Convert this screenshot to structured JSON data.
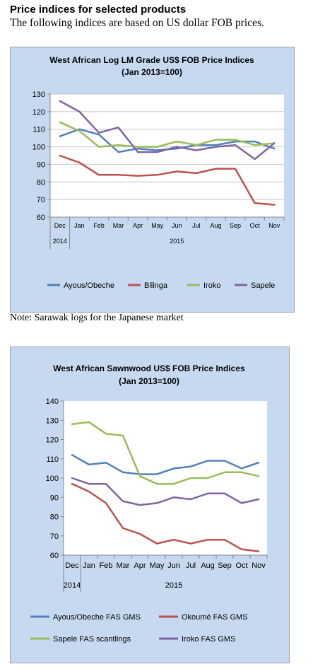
{
  "header": {
    "title": "Price indices for selected products",
    "subtitle": "The following indices are based on US dollar FOB prices."
  },
  "note": "Note: Sarawak logs for the Japanese market",
  "chart_data": [
    {
      "type": "line",
      "title": "West African Log LM Grade US$ FOB Price Indices",
      "subtitle": "(Jan 2013=100)",
      "categories": [
        "Dec",
        "Jan",
        "Feb",
        "Mar",
        "Apr",
        "May",
        "Jun",
        "Jul",
        "Aug",
        "Sep",
        "Oct",
        "Nov"
      ],
      "year_labels": [
        {
          "label": "2014",
          "from": 0,
          "to": 0
        },
        {
          "label": "2015",
          "from": 1,
          "to": 11
        }
      ],
      "ylim": [
        60,
        130
      ],
      "yticks": [
        60,
        70,
        80,
        90,
        100,
        110,
        120,
        130
      ],
      "grid": "horizontal",
      "legend": "bottom",
      "series": [
        {
          "name": "Ayous/Obeche",
          "color": "#4f81bd",
          "values": [
            106,
            110,
            107,
            97,
            99,
            98,
            99,
            101,
            101,
            103,
            103,
            99
          ]
        },
        {
          "name": "Bilinga",
          "color": "#c0504d",
          "values": [
            95,
            91,
            84,
            84,
            83.5,
            84,
            86,
            85,
            87.5,
            87.5,
            68,
            67
          ]
        },
        {
          "name": "Iroko",
          "color": "#9bbb59",
          "values": [
            114,
            109,
            100,
            101,
            100,
            100,
            103,
            101,
            104,
            104,
            101,
            102
          ]
        },
        {
          "name": "Sapele",
          "color": "#8064a2",
          "values": [
            126,
            120,
            108,
            111,
            97,
            97,
            100,
            98,
            100,
            101,
            93,
            102
          ]
        }
      ]
    },
    {
      "type": "line",
      "title": "West African Sawnwood US$ FOB Price Indices",
      "subtitle": "(Jan 2013=100)",
      "categories": [
        "Dec",
        "Jan",
        "Feb",
        "Mar",
        "Apr",
        "May",
        "Jun",
        "Jul",
        "Aug",
        "Sep",
        "Oct",
        "Nov"
      ],
      "year_labels": [
        {
          "label": "2014",
          "from": 0,
          "to": 0
        },
        {
          "label": "2015",
          "from": 1,
          "to": 11
        }
      ],
      "ylim": [
        60,
        140
      ],
      "yticks": [
        60,
        70,
        80,
        90,
        100,
        110,
        120,
        130,
        140
      ],
      "grid": "none",
      "legend": "bottom",
      "series": [
        {
          "name": "Ayous/Obeche  FAS GMS",
          "color": "#4f81bd",
          "values": [
            112,
            107,
            108,
            103,
            102,
            102,
            105,
            106,
            109,
            109,
            105,
            108
          ]
        },
        {
          "name": "Okoumé  FAS GMS",
          "color": "#c0504d",
          "values": [
            97,
            93,
            87,
            74,
            71,
            66,
            68,
            66,
            68,
            68,
            63,
            62
          ]
        },
        {
          "name": "Sapele FAS scantlings",
          "color": "#9bbb59",
          "values": [
            128,
            129,
            123,
            122,
            101,
            97,
            97,
            100,
            100,
            103,
            103,
            101
          ]
        },
        {
          "name": "Iroko FAS GMS",
          "color": "#8064a2",
          "values": [
            100,
            97,
            97,
            88,
            86,
            87,
            90,
            89,
            92,
            92,
            87,
            89
          ]
        }
      ]
    }
  ]
}
